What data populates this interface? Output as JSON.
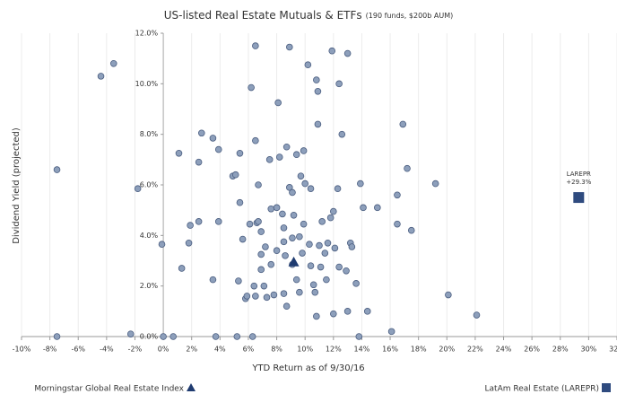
{
  "chart_data": {
    "type": "scatter",
    "title": "US-listed Real Estate Mutuals & ETFs",
    "subtitle": "(190 funds, $200b AUM)",
    "x_label": "YTD Return as of 9/30/16",
    "y_label": "Dividend Yield (projected)",
    "xlim": [
      -10,
      32
    ],
    "ylim": [
      0,
      12
    ],
    "xticks": [
      {
        "value": -10,
        "label": "-10%"
      },
      {
        "value": -8,
        "label": "-8%"
      },
      {
        "value": -6,
        "label": "-6%"
      },
      {
        "value": -4,
        "label": "-4%"
      },
      {
        "value": -2,
        "label": "-2%"
      },
      {
        "value": 0,
        "label": "0%"
      },
      {
        "value": 2,
        "label": "2%"
      },
      {
        "value": 4,
        "label": "4%"
      },
      {
        "value": 6,
        "label": "6%"
      },
      {
        "value": 8,
        "label": "8%"
      },
      {
        "value": 10,
        "label": "10%"
      },
      {
        "value": 12,
        "label": "12%"
      },
      {
        "value": 14,
        "label": "14%"
      },
      {
        "value": 16,
        "label": "16%"
      },
      {
        "value": 18,
        "label": "18%"
      },
      {
        "value": 20,
        "label": "20%"
      },
      {
        "value": 22,
        "label": "22%"
      },
      {
        "value": 24,
        "label": "24%"
      },
      {
        "value": 26,
        "label": "26%"
      },
      {
        "value": 28,
        "label": "28%"
      },
      {
        "value": 30,
        "label": "30%"
      },
      {
        "value": 32,
        "label": "32%"
      }
    ],
    "yticks": [
      {
        "value": 0,
        "label": "0.0%"
      },
      {
        "value": 2,
        "label": "2.0%"
      },
      {
        "value": 4,
        "label": "4.0%"
      },
      {
        "value": 6,
        "label": "6.0%"
      },
      {
        "value": 8,
        "label": "8.0%"
      },
      {
        "value": 10,
        "label": "10.0%"
      },
      {
        "value": 12,
        "label": "12.0%"
      }
    ],
    "grid": "x",
    "series": [
      {
        "color": "#8d9fbb",
        "marker": "circle",
        "x": [
          -7.5,
          -4.4,
          -3.5,
          -1.8,
          -2.3,
          -7.5,
          -0.1,
          0,
          0.7,
          1.3,
          1.1,
          1.8,
          1.9,
          2.5,
          2.5,
          2.7,
          3.5,
          3.5,
          3.7,
          3.9,
          3.9,
          4.9,
          5.2,
          5.1,
          5.4,
          5.3,
          5.4,
          5.6,
          5.8,
          5.9,
          6.1,
          6.3,
          6.4,
          6.2,
          6.5,
          6.6,
          6.7,
          6.5,
          6.5,
          6.7,
          6.9,
          6.9,
          6.9,
          7.1,
          7.3,
          7.2,
          7.5,
          7.6,
          7.6,
          7.8,
          8.0,
          8.0,
          8.1,
          8.2,
          8.4,
          8.5,
          8.5,
          8.6,
          8.5,
          8.7,
          8.7,
          8.9,
          8.9,
          9.1,
          9.1,
          9.1,
          9.2,
          9.4,
          9.4,
          9.6,
          9.6,
          9.7,
          9.8,
          9.9,
          9.9,
          10.0,
          10.2,
          10.3,
          10.4,
          10.4,
          10.6,
          10.7,
          10.8,
          10.8,
          10.9,
          10.9,
          11.0,
          11.1,
          11.2,
          11.4,
          11.5,
          11.6,
          11.8,
          11.9,
          12.0,
          12.0,
          12.1,
          12.3,
          12.4,
          12.4,
          12.6,
          12.9,
          13.0,
          13.0,
          13.2,
          13.3,
          13.6,
          13.8,
          13.9,
          14.1,
          14.4,
          15.1,
          16.1,
          16.5,
          16.5,
          16.9,
          17.2,
          17.5,
          19.2,
          20.1,
          22.1
        ],
        "y": [
          6.6,
          10.3,
          10.8,
          5.85,
          0.1,
          0,
          3.65,
          0,
          0,
          2.7,
          7.25,
          3.7,
          4.4,
          4.55,
          6.9,
          8.05,
          7.85,
          2.25,
          0,
          4.55,
          7.4,
          6.35,
          0,
          6.4,
          5.3,
          2.2,
          7.25,
          3.85,
          1.5,
          1.6,
          4.45,
          0,
          2.0,
          9.85,
          7.75,
          4.5,
          4.55,
          11.5,
          1.6,
          6.0,
          4.15,
          3.25,
          2.65,
          2.0,
          1.55,
          3.55,
          7.0,
          5.05,
          2.85,
          1.65,
          3.4,
          5.1,
          9.25,
          7.1,
          4.85,
          4.3,
          3.75,
          3.2,
          1.7,
          7.5,
          1.2,
          11.45,
          5.9,
          5.7,
          3.9,
          2.85,
          4.8,
          7.2,
          2.25,
          3.95,
          1.75,
          6.35,
          3.3,
          4.45,
          7.35,
          6.05,
          10.75,
          3.65,
          5.85,
          2.8,
          2.05,
          1.75,
          0.8,
          10.15,
          8.4,
          9.7,
          3.6,
          2.75,
          4.55,
          3.3,
          2.25,
          3.7,
          4.7,
          11.3,
          4.95,
          0.9,
          3.5,
          5.85,
          10.0,
          2.75,
          8.0,
          2.6,
          11.2,
          1.0,
          3.7,
          3.55,
          2.1,
          0,
          6.05,
          5.1,
          1.0,
          5.1,
          0.2,
          5.6,
          4.45,
          8.4,
          6.65,
          4.2,
          6.05,
          1.65,
          0.85
        ]
      },
      {
        "name": "Morningstar Global Real Estate Index",
        "color": "#1f3b70",
        "marker": "triangle",
        "x": [
          9.2
        ],
        "y": [
          2.95
        ]
      },
      {
        "name": "LatAm Real Estate (LAREPR)",
        "color": "#2f4b7f",
        "marker": "square",
        "x": [
          29.3
        ],
        "y": [
          5.5
        ]
      }
    ],
    "annotations": [
      "LAREPR",
      "+29.3%"
    ]
  }
}
